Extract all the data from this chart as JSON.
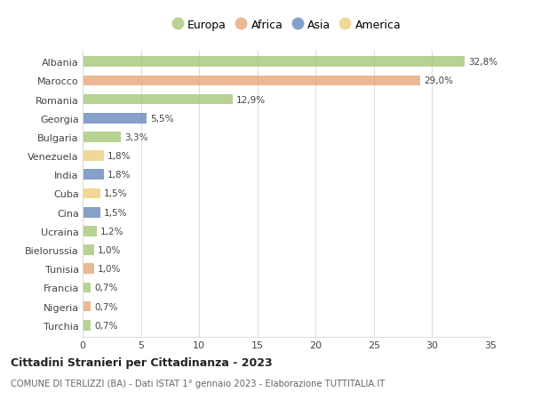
{
  "categories": [
    "Albania",
    "Marocco",
    "Romania",
    "Georgia",
    "Bulgaria",
    "Venezuela",
    "India",
    "Cuba",
    "Cina",
    "Ucraina",
    "Bielorussia",
    "Tunisia",
    "Francia",
    "Nigeria",
    "Turchia"
  ],
  "values": [
    32.8,
    29.0,
    12.9,
    5.5,
    3.3,
    1.8,
    1.8,
    1.5,
    1.5,
    1.2,
    1.0,
    1.0,
    0.7,
    0.7,
    0.7
  ],
  "labels": [
    "32,8%",
    "29,0%",
    "12,9%",
    "5,5%",
    "3,3%",
    "1,8%",
    "1,8%",
    "1,5%",
    "1,5%",
    "1,2%",
    "1,0%",
    "1,0%",
    "0,7%",
    "0,7%",
    "0,7%"
  ],
  "continent": [
    "Europa",
    "Africa",
    "Europa",
    "Asia",
    "Europa",
    "America",
    "Asia",
    "America",
    "Asia",
    "Europa",
    "Europa",
    "Africa",
    "Europa",
    "Africa",
    "Europa"
  ],
  "colors": {
    "Europa": "#a8c87a",
    "Africa": "#e8a87c",
    "Asia": "#6b8bbf",
    "America": "#f0d080"
  },
  "bar_colors": [
    "#a8c87a",
    "#e8a87c",
    "#a8c87a",
    "#6b8bbf",
    "#a8c87a",
    "#f0d080",
    "#6b8bbf",
    "#f0d080",
    "#6b8bbf",
    "#a8c87a",
    "#a8c87a",
    "#e8a87c",
    "#a8c87a",
    "#e8a87c",
    "#a8c87a"
  ],
  "xlim": [
    0,
    35
  ],
  "xticks": [
    0,
    5,
    10,
    15,
    20,
    25,
    30,
    35
  ],
  "title": "Cittadini Stranieri per Cittadinanza - 2023",
  "subtitle": "COMUNE DI TERLIZZI (BA) - Dati ISTAT 1° gennaio 2023 - Elaborazione TUTTITALIA.IT",
  "background_color": "#ffffff",
  "grid_color": "#dddddd",
  "bar_alpha": 0.82,
  "bar_height": 0.55
}
